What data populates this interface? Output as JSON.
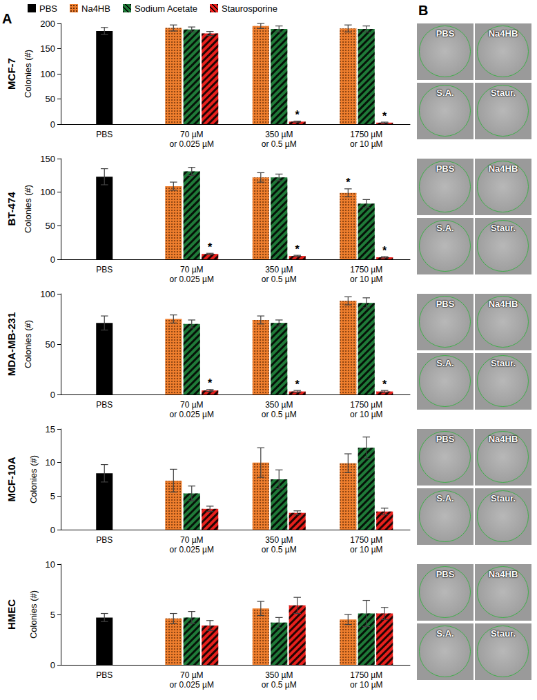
{
  "panel_letters": [
    "A",
    "B"
  ],
  "wells": {
    "labels": [
      "PBS",
      "Na4HB",
      "S.A.",
      "Staur."
    ]
  },
  "chart_data": [
    {
      "type": "bar",
      "title": "MCF-7",
      "y_label": "Colonies (#)",
      "legend": "top",
      "grid": false,
      "categories": [
        "PBS",
        "70 µM\nor 0.025 µM",
        "350 µM\nor 0.5 µM",
        "1750 µM\nor 10 µM"
      ],
      "ylim": [
        0,
        200
      ],
      "yticks": [
        0,
        50,
        100,
        150,
        200
      ],
      "series": [
        {
          "name": "PBS",
          "color": "#000000",
          "values": [
            185,
            null,
            null,
            null
          ],
          "errors": [
            7,
            null,
            null,
            null
          ]
        },
        {
          "name": "Na4HB",
          "color": "#f07f2e",
          "values": [
            null,
            191,
            195,
            190
          ],
          "errors": [
            null,
            6,
            5,
            7
          ]
        },
        {
          "name": "Sodium Acetate",
          "color": "#1f7a38",
          "values": [
            null,
            188,
            189,
            189
          ],
          "errors": [
            null,
            5,
            6,
            6
          ]
        },
        {
          "name": "Staurosporine",
          "color": "#e8201c",
          "values": [
            null,
            180,
            5,
            3
          ],
          "errors": [
            null,
            4,
            1,
            1
          ],
          "annotations": [
            null,
            null,
            "*",
            "*"
          ]
        }
      ]
    },
    {
      "type": "bar",
      "title": "BT-474",
      "y_label": "Colonies (#)",
      "grid": false,
      "categories": [
        "PBS",
        "70 µM\nor 0.025 µM",
        "350 µM\nor 0.5 µM",
        "1750 µM\nor 10 µM"
      ],
      "ylim": [
        0,
        150
      ],
      "yticks": [
        0,
        50,
        100,
        150
      ],
      "series": [
        {
          "name": "PBS",
          "color": "#000000",
          "values": [
            123,
            null,
            null,
            null
          ],
          "errors": [
            12,
            null,
            null,
            null
          ]
        },
        {
          "name": "Na4HB",
          "color": "#f07f2e",
          "values": [
            null,
            109,
            122,
            99
          ],
          "errors": [
            null,
            6,
            7,
            6
          ],
          "annotations": [
            null,
            null,
            null,
            "*"
          ]
        },
        {
          "name": "Sodium Acetate",
          "color": "#1f7a38",
          "values": [
            null,
            131,
            122,
            83
          ],
          "errors": [
            null,
            6,
            5,
            6
          ]
        },
        {
          "name": "Staurosporine",
          "color": "#e8201c",
          "values": [
            null,
            8,
            5,
            3
          ],
          "errors": [
            null,
            1,
            1,
            1
          ],
          "annotations": [
            null,
            "*",
            "*",
            "*"
          ]
        }
      ]
    },
    {
      "type": "bar",
      "title": "MDA-MB-231",
      "y_label": "Colonies (#)",
      "grid": false,
      "categories": [
        "PBS",
        "70 µM\nor 0.025 µM",
        "350 µM\nor 0.5 µM",
        "1750 µM\nor 10 µM"
      ],
      "ylim": [
        0,
        100
      ],
      "yticks": [
        0,
        50,
        100
      ],
      "series": [
        {
          "name": "PBS",
          "color": "#000000",
          "values": [
            71,
            null,
            null,
            null
          ],
          "errors": [
            7,
            null,
            null,
            null
          ]
        },
        {
          "name": "Na4HB",
          "color": "#f07f2e",
          "values": [
            null,
            75,
            74,
            93
          ],
          "errors": [
            null,
            4,
            4,
            4
          ]
        },
        {
          "name": "Sodium Acetate",
          "color": "#1f7a38",
          "values": [
            null,
            70,
            71,
            91
          ],
          "errors": [
            null,
            4,
            3,
            5
          ]
        },
        {
          "name": "Staurosporine",
          "color": "#e8201c",
          "values": [
            null,
            4,
            3,
            3
          ],
          "errors": [
            null,
            1,
            1,
            1
          ],
          "annotations": [
            null,
            "*",
            "*",
            "*"
          ]
        }
      ]
    },
    {
      "type": "bar",
      "title": "MCF-10A",
      "y_label": "Colonies (#)",
      "grid": false,
      "categories": [
        "PBS",
        "70 µM\nor 0.025 µM",
        "350 µM\nor 0.5 µM",
        "1750 µM\nor 10 µM"
      ],
      "ylim": [
        0,
        15
      ],
      "yticks": [
        0,
        5,
        10,
        15
      ],
      "series": [
        {
          "name": "PBS",
          "color": "#000000",
          "values": [
            8.4,
            null,
            null,
            null
          ],
          "errors": [
            1.3,
            null,
            null,
            null
          ]
        },
        {
          "name": "Na4HB",
          "color": "#f07f2e",
          "values": [
            null,
            7.3,
            10,
            9.9
          ],
          "errors": [
            null,
            1.7,
            2.2,
            1.4
          ]
        },
        {
          "name": "Sodium Acetate",
          "color": "#1f7a38",
          "values": [
            null,
            5.4,
            7.5,
            12.2
          ],
          "errors": [
            null,
            1.1,
            1.4,
            1.6
          ]
        },
        {
          "name": "Staurosporine",
          "color": "#e8201c",
          "values": [
            null,
            3.1,
            2.5,
            2.7
          ],
          "errors": [
            null,
            0.4,
            0.3,
            0.5
          ]
        }
      ]
    },
    {
      "type": "bar",
      "title": "HMEC",
      "y_label": "Colonies (#)",
      "grid": false,
      "categories": [
        "PBS",
        "70 µM\nor 0.025 µM",
        "350 µM\nor 0.5 µM",
        "1750 µM\nor 10 µM"
      ],
      "ylim": [
        0,
        10
      ],
      "yticks": [
        0,
        5,
        10
      ],
      "series": [
        {
          "name": "PBS",
          "color": "#000000",
          "values": [
            4.7,
            null,
            null,
            null
          ],
          "errors": [
            0.4,
            null,
            null,
            null
          ]
        },
        {
          "name": "Na4HB",
          "color": "#f07f2e",
          "values": [
            null,
            4.6,
            5.6,
            4.5
          ],
          "errors": [
            null,
            0.5,
            0.7,
            0.5
          ]
        },
        {
          "name": "Sodium Acetate",
          "color": "#1f7a38",
          "values": [
            null,
            4.7,
            4.2,
            5.1
          ],
          "errors": [
            null,
            0.6,
            0.5,
            1.3
          ]
        },
        {
          "name": "Staurosporine",
          "color": "#e8201c",
          "values": [
            null,
            3.9,
            5.9,
            5.1
          ],
          "errors": [
            null,
            0.5,
            0.8,
            0.6
          ]
        }
      ]
    }
  ]
}
